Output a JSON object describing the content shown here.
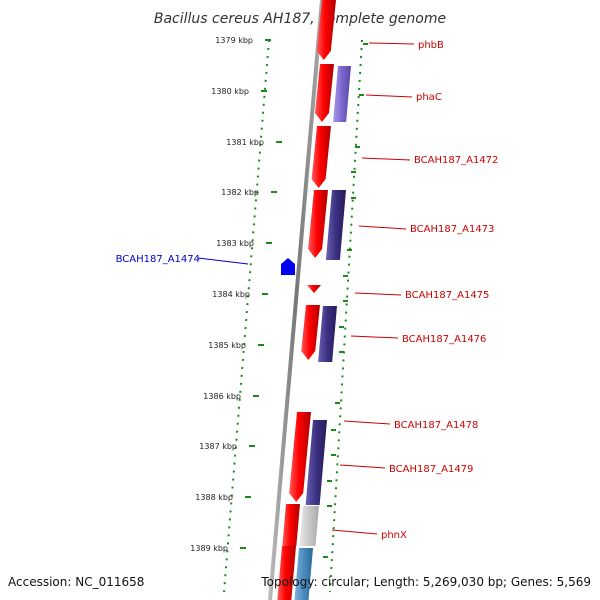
{
  "title": "Bacillus cereus AH187, complete genome",
  "footer": {
    "accession": "Accession: NC_011658",
    "topology": "Topology: circular; Length: 5,269,030 bp; Genes: 5,569"
  },
  "colors": {
    "forward_cds": "#ff0000",
    "reverse_gene": "#3a3080",
    "reverse_gene_light": "#7a66cc",
    "ruler": "#1a8a1a",
    "backbone": "#888888",
    "label_forward": "#cc0000",
    "label_reverse": "#0000cc",
    "pseudo": "#c8c8c8",
    "other": "#4a8cc0"
  },
  "ruler_ticks": [
    "1379 kbp",
    "1380 kbp",
    "1381 kbp",
    "1382 kbp",
    "1383 kbp",
    "1384 kbp",
    "1385 kbp",
    "1386 kbp",
    "1387 kbp",
    "1388 kbp",
    "1389 kbp"
  ],
  "gene_labels": [
    {
      "name": "phbB",
      "strand": "+"
    },
    {
      "name": "phaC",
      "strand": "+"
    },
    {
      "name": "BCAH187_A1472",
      "strand": "+"
    },
    {
      "name": "BCAH187_A1473",
      "strand": "+"
    },
    {
      "name": "BCAH187_A1474",
      "strand": "-"
    },
    {
      "name": "BCAH187_A1475",
      "strand": "+"
    },
    {
      "name": "BCAH187_A1476",
      "strand": "+"
    },
    {
      "name": "BCAH187_A1478",
      "strand": "+"
    },
    {
      "name": "BCAH187_A1479",
      "strand": "+"
    },
    {
      "name": "phnX",
      "strand": "+"
    }
  ]
}
